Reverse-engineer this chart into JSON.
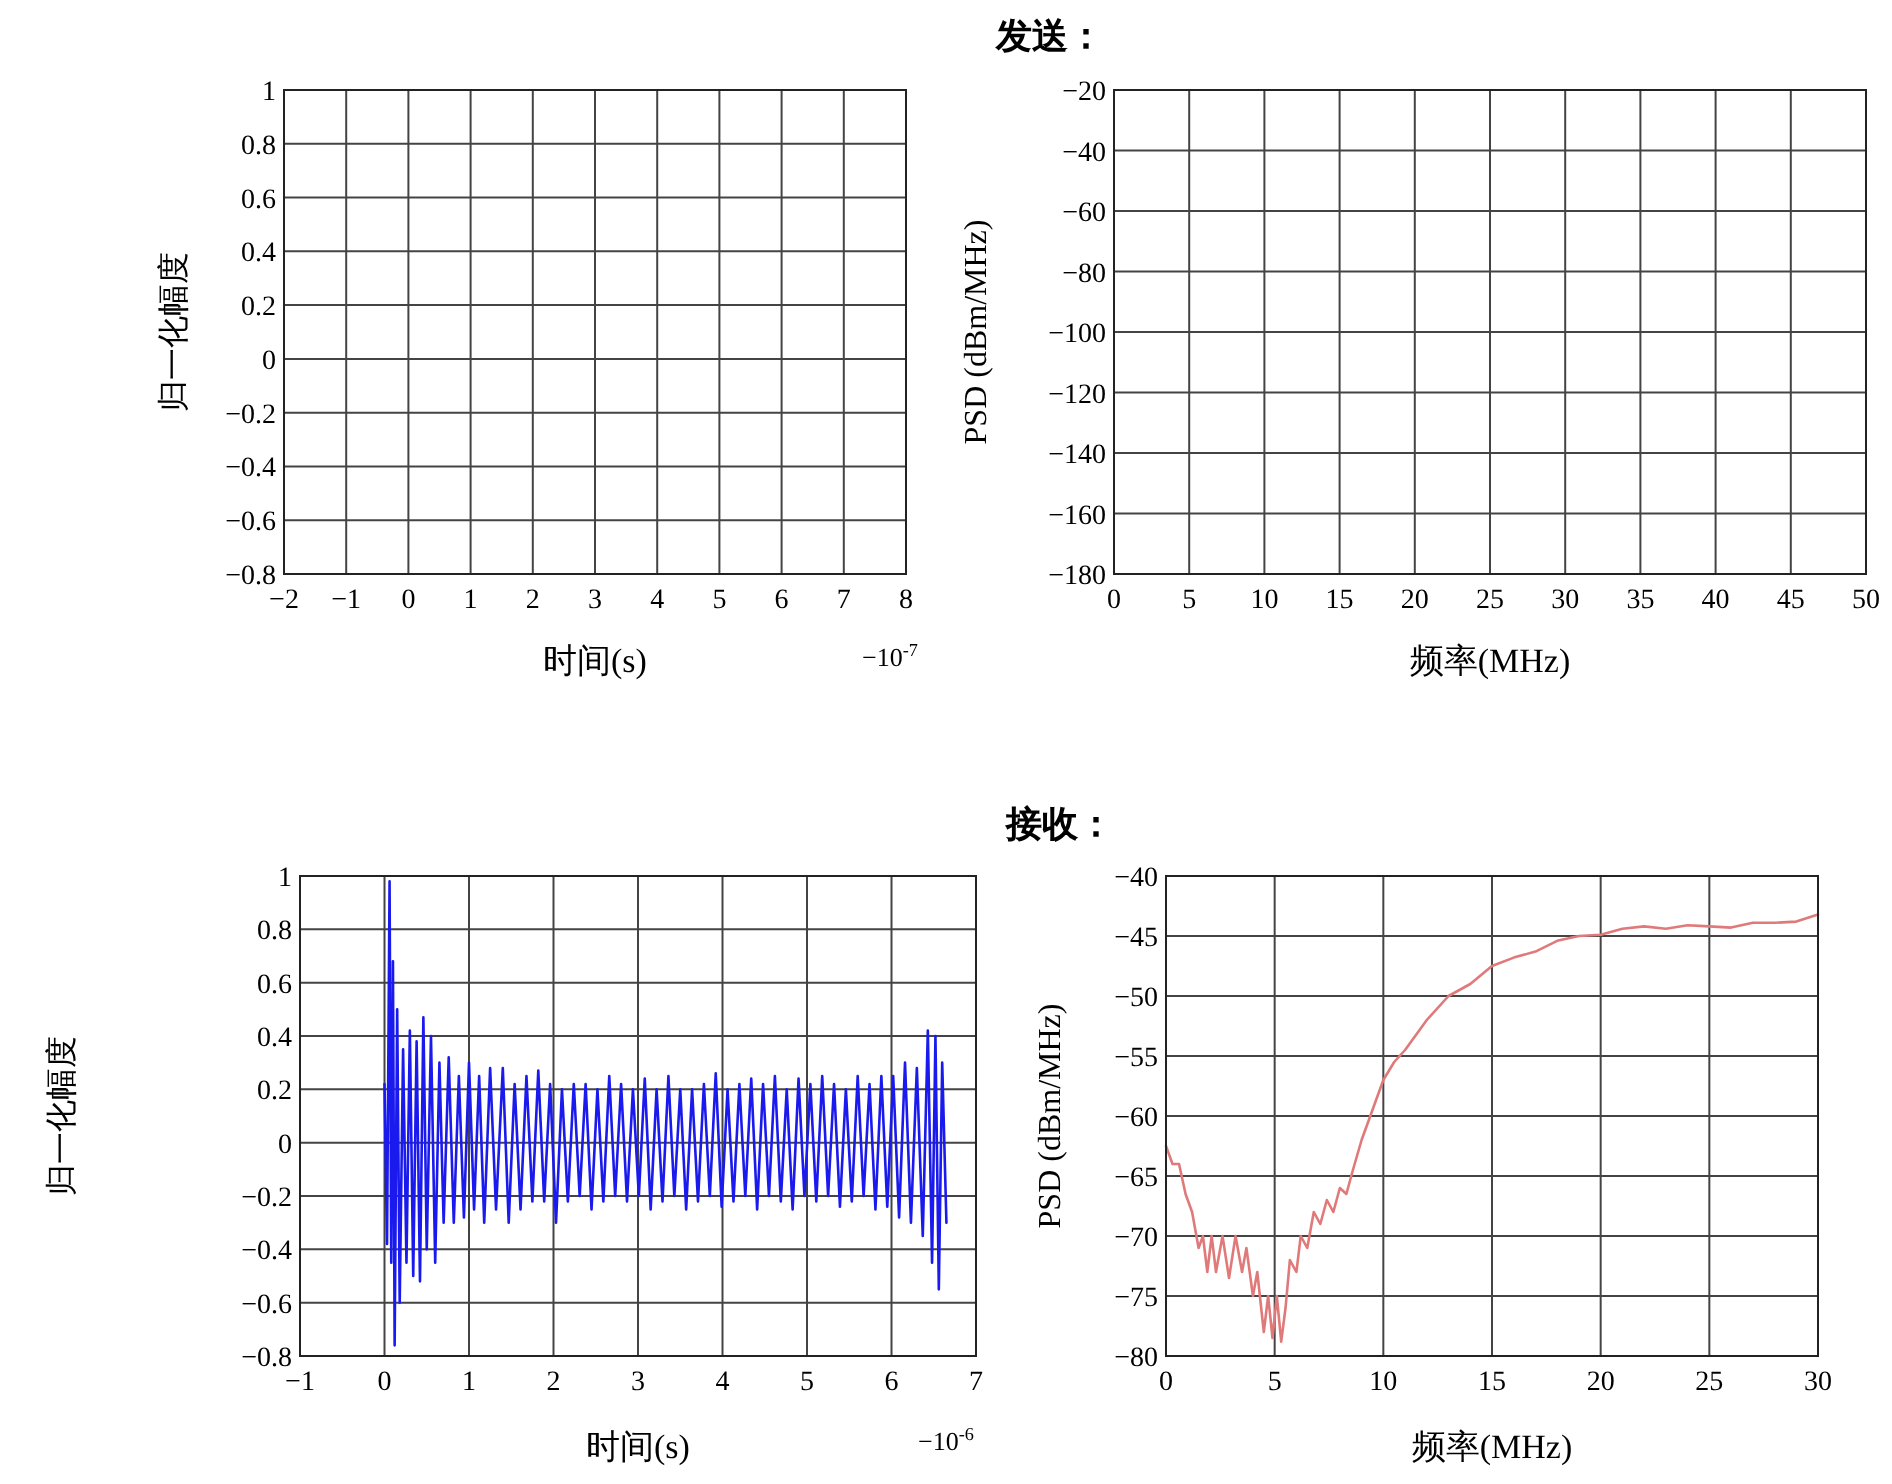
{
  "chart_data": [
    {
      "type": "line",
      "xlabel": "时间(s)",
      "ylabel": "归一化幅度",
      "annotations": [
        "−10$^{-7}$"
      ],
      "xlim": [
        -2,
        8
      ],
      "xticks": [
        -2,
        -1,
        0,
        1,
        2,
        3,
        4,
        5,
        6,
        7,
        8
      ],
      "ylim": [
        -0.8,
        1
      ],
      "yticks": [
        -0.8,
        -0.6,
        -0.4,
        -0.2,
        0,
        0.2,
        0.4,
        0.6,
        0.8,
        1
      ],
      "grid": true
    },
    {
      "type": "line",
      "title": "发送：",
      "xlabel": "频率(MHz)",
      "ylabel": "PSD (dBm/MHz)",
      "xlim": [
        0,
        50
      ],
      "xticks": [
        0,
        5,
        10,
        15,
        20,
        25,
        30,
        35,
        40,
        45,
        50
      ],
      "ylim": [
        -180,
        -20
      ],
      "yticks": [
        -180,
        -160,
        -140,
        -120,
        -100,
        -80,
        -60,
        -40,
        -20
      ],
      "grid": true
    },
    {
      "type": "line",
      "xlabel": "时间(s)",
      "ylabel": "归一化幅度",
      "annotations": [
        "−10$^{-6}$"
      ],
      "xlim": [
        -1,
        7
      ],
      "xticks": [
        -1,
        0,
        1,
        2,
        3,
        4,
        5,
        6,
        7
      ],
      "ylim": [
        -0.8,
        1
      ],
      "yticks": [
        -0.8,
        -0.6,
        -0.4,
        -0.2,
        0,
        0.2,
        0.4,
        0.6,
        0.8,
        1
      ],
      "grid": true,
      "series": [
        {
          "color": "#1a1aee",
          "x": [
            0,
            0.03,
            0.06,
            0.08,
            0.1,
            0.12,
            0.15,
            0.18,
            0.22,
            0.26,
            0.3,
            0.34,
            0.38,
            0.42,
            0.46,
            0.5,
            0.55,
            0.6,
            0.65,
            0.7,
            0.76,
            0.82,
            0.88,
            0.94,
            1.0,
            1.06,
            1.12,
            1.18,
            1.25,
            1.32,
            1.4,
            1.47,
            1.54,
            1.61,
            1.68,
            1.75,
            1.82,
            1.89,
            1.96,
            2.03,
            2.1,
            2.17,
            2.24,
            2.31,
            2.38,
            2.45,
            2.52,
            2.59,
            2.66,
            2.73,
            2.8,
            2.87,
            2.94,
            3.01,
            3.08,
            3.15,
            3.22,
            3.29,
            3.36,
            3.43,
            3.5,
            3.57,
            3.64,
            3.71,
            3.78,
            3.85,
            3.92,
            3.99,
            4.06,
            4.13,
            4.2,
            4.27,
            4.34,
            4.41,
            4.48,
            4.55,
            4.62,
            4.69,
            4.76,
            4.83,
            4.9,
            4.97,
            5.04,
            5.11,
            5.18,
            5.25,
            5.32,
            5.39,
            5.46,
            5.53,
            5.6,
            5.67,
            5.74,
            5.81,
            5.88,
            5.95,
            6.02,
            6.09,
            6.16,
            6.23,
            6.3,
            6.37,
            6.43,
            6.48,
            6.52,
            6.56,
            6.6,
            6.65
          ],
          "values": [
            0.22,
            -0.38,
            0.98,
            -0.45,
            0.68,
            -0.76,
            0.5,
            -0.6,
            0.35,
            -0.45,
            0.42,
            -0.5,
            0.38,
            -0.52,
            0.47,
            -0.4,
            0.4,
            -0.45,
            0.3,
            -0.3,
            0.32,
            -0.3,
            0.25,
            -0.28,
            0.3,
            -0.25,
            0.25,
            -0.3,
            0.28,
            -0.25,
            0.28,
            -0.3,
            0.22,
            -0.25,
            0.25,
            -0.22,
            0.27,
            -0.22,
            0.22,
            -0.3,
            0.2,
            -0.22,
            0.22,
            -0.2,
            0.22,
            -0.25,
            0.2,
            -0.22,
            0.25,
            -0.2,
            0.22,
            -0.22,
            0.2,
            -0.2,
            0.24,
            -0.25,
            0.2,
            -0.22,
            0.25,
            -0.2,
            0.2,
            -0.25,
            0.2,
            -0.22,
            0.22,
            -0.2,
            0.26,
            -0.24,
            0.2,
            -0.22,
            0.22,
            -0.2,
            0.24,
            -0.25,
            0.22,
            -0.2,
            0.25,
            -0.22,
            0.2,
            -0.25,
            0.24,
            -0.2,
            0.22,
            -0.22,
            0.25,
            -0.2,
            0.22,
            -0.24,
            0.2,
            -0.22,
            0.25,
            -0.2,
            0.22,
            -0.25,
            0.25,
            -0.24,
            0.25,
            -0.28,
            0.3,
            -0.3,
            0.28,
            -0.35,
            0.42,
            -0.45,
            0.4,
            -0.55,
            0.3,
            -0.3
          ]
        }
      ]
    },
    {
      "type": "line",
      "title": "接收：",
      "xlabel": "频率(MHz)",
      "ylabel": "PSD (dBm/MHz)",
      "xlim": [
        0,
        30
      ],
      "xticks": [
        0,
        5,
        10,
        15,
        20,
        25,
        30
      ],
      "ylim": [
        -80,
        -40
      ],
      "yticks": [
        -80,
        -75,
        -70,
        -65,
        -60,
        -55,
        -50,
        -45,
        -40
      ],
      "grid": true,
      "series": [
        {
          "color": "#e07a7a",
          "x": [
            0,
            0.3,
            0.6,
            0.9,
            1.2,
            1.5,
            1.7,
            1.9,
            2.1,
            2.3,
            2.6,
            2.9,
            3.2,
            3.5,
            3.7,
            4.0,
            4.2,
            4.5,
            4.7,
            4.9,
            5.1,
            5.3,
            5.5,
            5.7,
            6.0,
            6.2,
            6.5,
            6.8,
            7.1,
            7.4,
            7.7,
            8.0,
            8.3,
            8.6,
            9.0,
            9.5,
            10,
            10.5,
            11,
            12,
            13,
            14,
            15,
            16,
            17,
            18,
            19,
            20,
            21,
            22,
            23,
            24,
            25,
            26,
            27,
            28,
            29,
            30
          ],
          "values": [
            -62.5,
            -64,
            -64,
            -66.5,
            -68,
            -71,
            -70,
            -73,
            -70,
            -73,
            -70,
            -73.5,
            -70,
            -73,
            -71,
            -75,
            -73,
            -78,
            -75,
            -78.5,
            -75,
            -78.8,
            -76,
            -72,
            -73,
            -70,
            -71,
            -68,
            -69,
            -67,
            -68,
            -66,
            -66.5,
            -64.5,
            -62,
            -59.5,
            -57,
            -55.5,
            -54.5,
            -52,
            -50,
            -49,
            -47.5,
            -46.8,
            -46.3,
            -45.4,
            -45,
            -44.9,
            -44.4,
            -44.2,
            -44.4,
            -44.1,
            -44.2,
            -44.3,
            -43.9,
            -43.9,
            -43.8,
            -43.2
          ]
        }
      ]
    }
  ]
}
